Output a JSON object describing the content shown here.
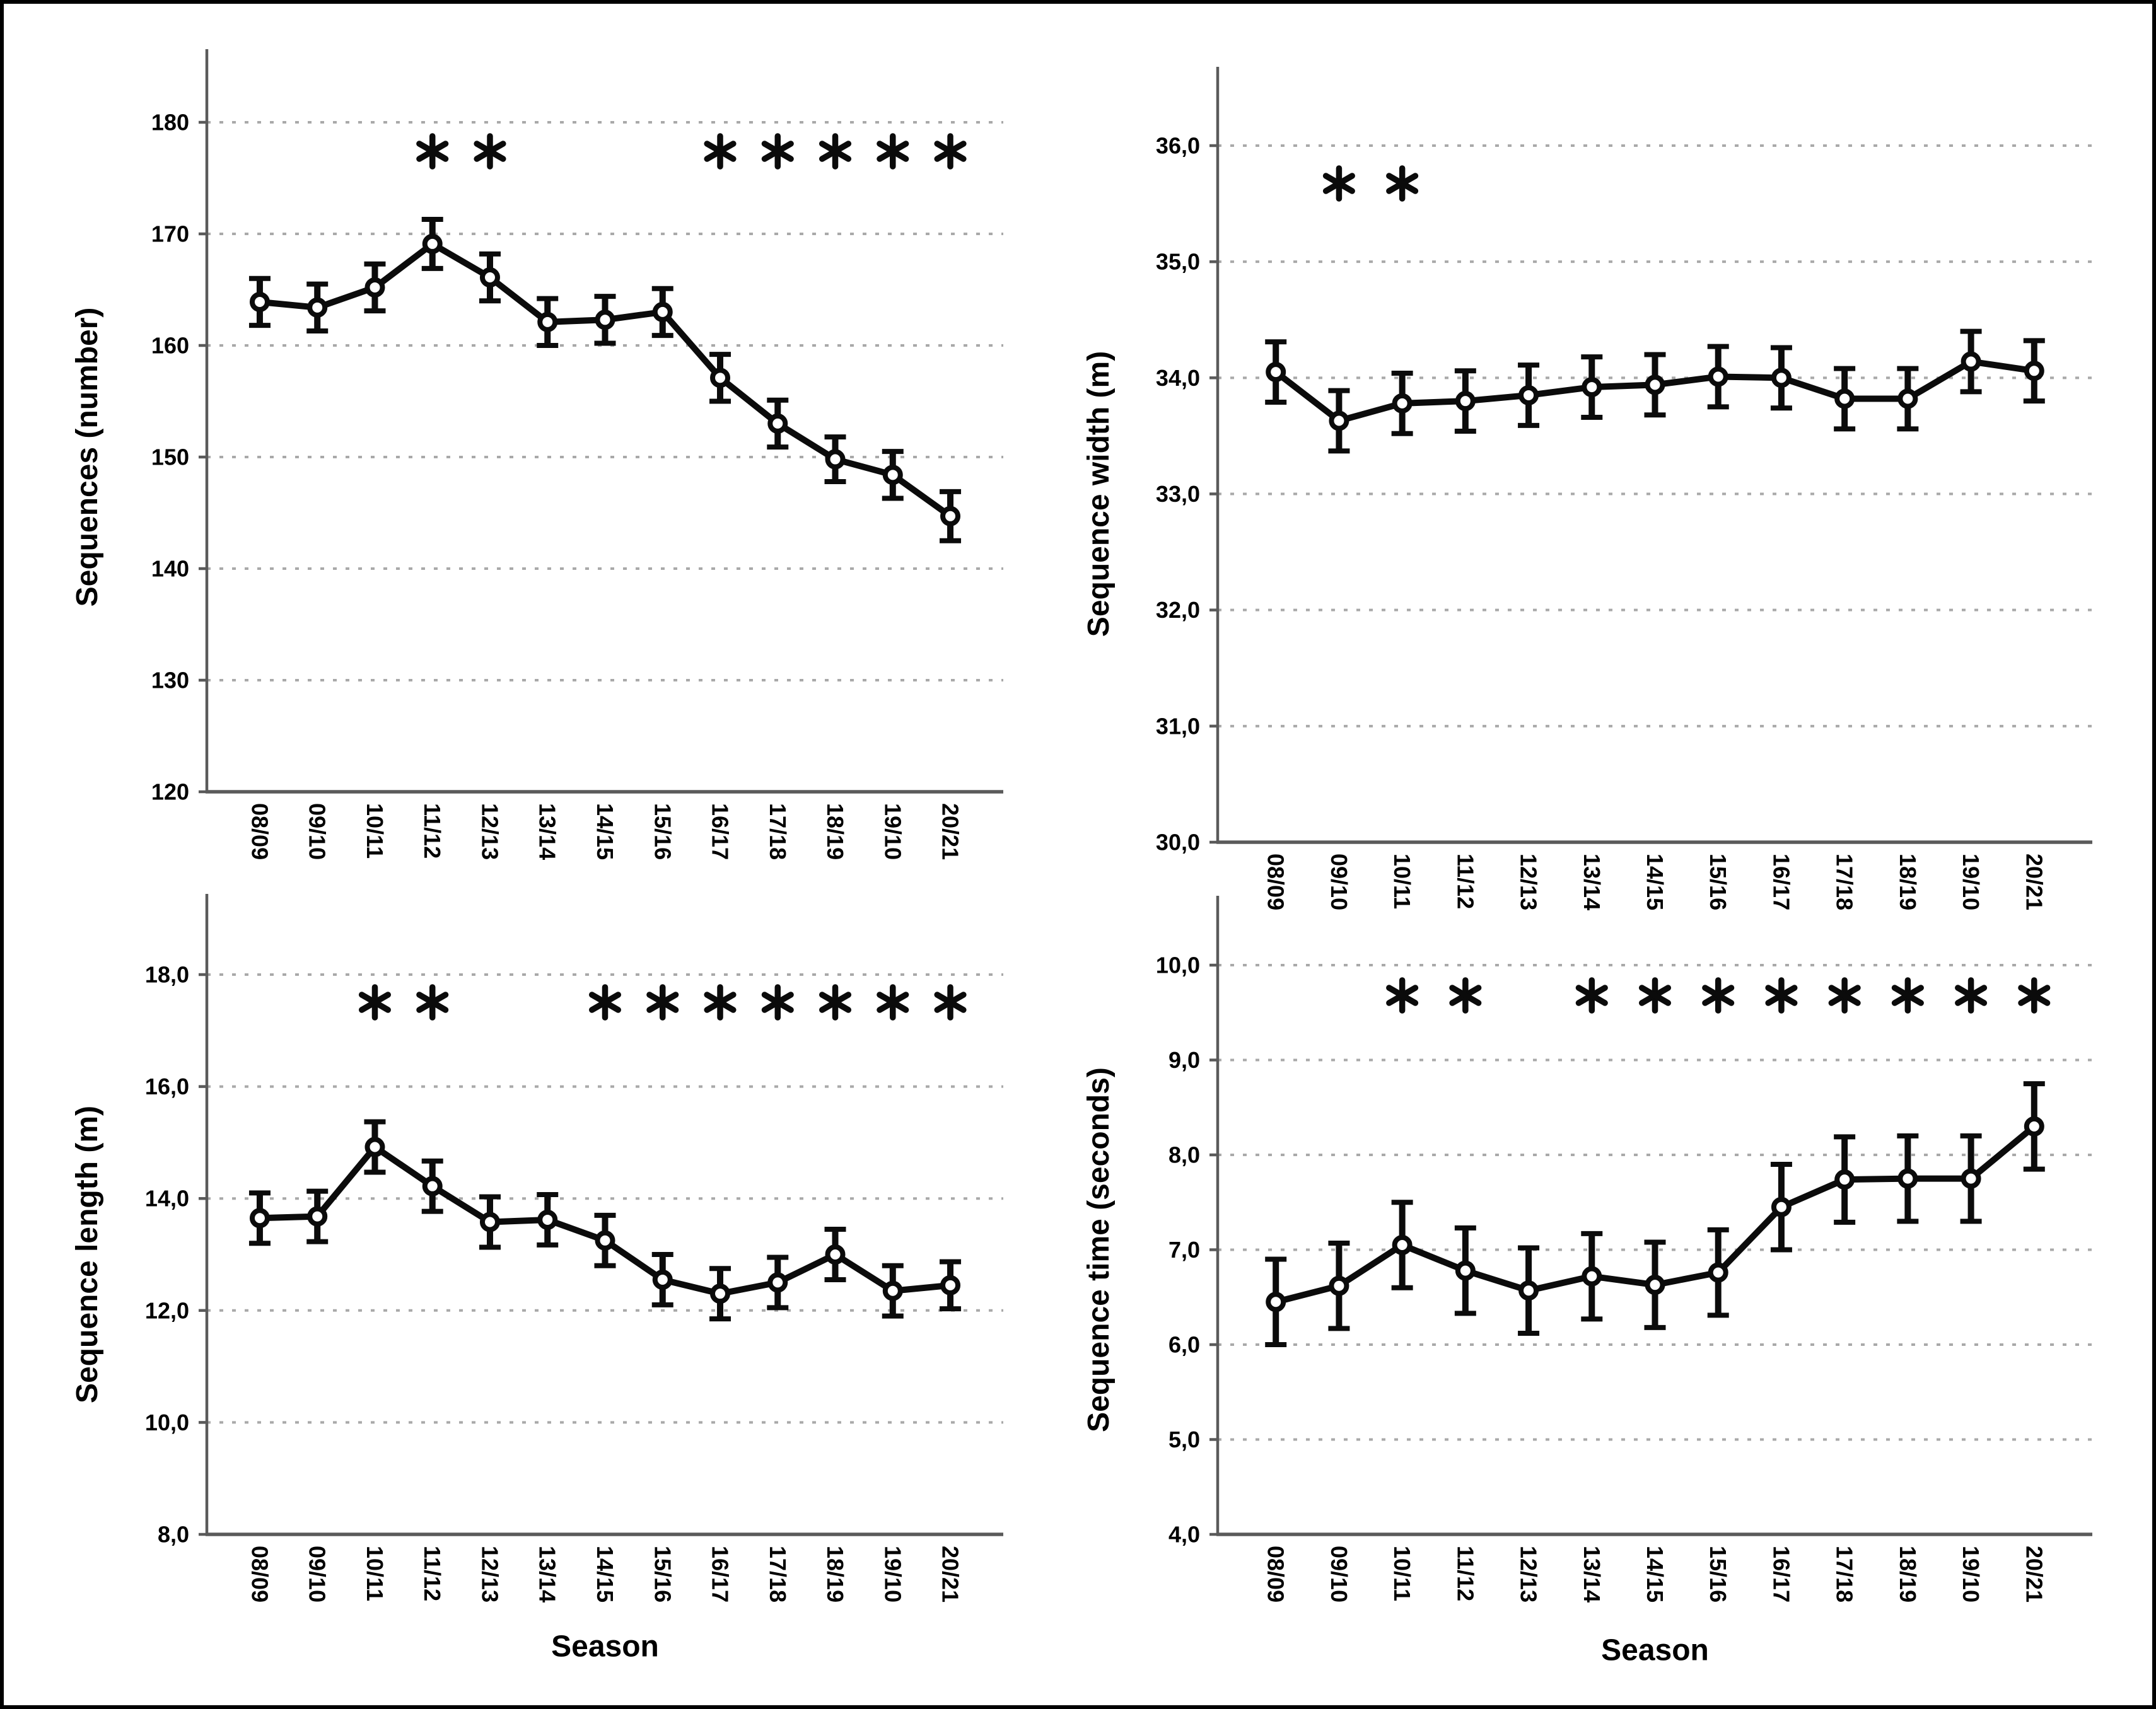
{
  "figure": {
    "background": "#ffffff",
    "frame_color": "#000000",
    "data_color": "#0b0b0b",
    "grid_color": "#a9a9a9",
    "axis_color": "#5a5a5a",
    "significance_symbol": "*",
    "decimal_separator": ","
  },
  "x_axis_title": "Season",
  "categories": [
    "08/09",
    "09/10",
    "10/11",
    "11/12",
    "12/13",
    "13/14",
    "14/15",
    "15/16",
    "16/17",
    "17/18",
    "18/19",
    "19/10",
    "20/21"
  ],
  "chart_data": [
    {
      "id": "sequences-number",
      "type": "line",
      "panel": "top-left",
      "ylabel": "Sequences (number)",
      "xlabel": "",
      "categories": [
        "08/09",
        "09/10",
        "10/11",
        "11/12",
        "12/13",
        "13/14",
        "14/15",
        "15/16",
        "16/17",
        "17/18",
        "18/19",
        "19/10",
        "20/21"
      ],
      "values": [
        163.9,
        163.4,
        165.2,
        169.1,
        166.1,
        162.1,
        162.3,
        163.0,
        157.1,
        153.0,
        149.8,
        148.4,
        144.7
      ],
      "errors": [
        2.1,
        2.1,
        2.1,
        2.2,
        2.1,
        2.1,
        2.1,
        2.1,
        2.1,
        2.1,
        2.0,
        2.1,
        2.2
      ],
      "ylim": [
        120,
        180
      ],
      "ytick_step": 10,
      "ytick_format": "integer",
      "grid": "horizontal-dotted",
      "legend": "none",
      "error_bars": true,
      "significance_marked": [
        "11/12",
        "12/13",
        "16/17",
        "17/18",
        "18/19",
        "19/10",
        "20/21"
      ]
    },
    {
      "id": "sequence-width",
      "type": "line",
      "panel": "top-right",
      "ylabel": "Sequence width (m)",
      "xlabel": "",
      "categories": [
        "08/09",
        "09/10",
        "10/11",
        "11/12",
        "12/13",
        "13/14",
        "14/15",
        "15/16",
        "16/17",
        "17/18",
        "18/19",
        "19/10",
        "20/21"
      ],
      "values": [
        34.05,
        33.63,
        33.78,
        33.8,
        33.85,
        33.92,
        33.94,
        34.01,
        34.0,
        33.82,
        33.82,
        34.14,
        34.06
      ],
      "errors": [
        0.26,
        0.26,
        0.26,
        0.26,
        0.26,
        0.26,
        0.26,
        0.26,
        0.26,
        0.26,
        0.26,
        0.26,
        0.26
      ],
      "ylim": [
        30.0,
        36.0
      ],
      "ytick_step": 1.0,
      "ytick_format": "comma1",
      "grid": "horizontal-dotted",
      "legend": "none",
      "error_bars": true,
      "significance_marked": [
        "09/10",
        "10/11"
      ]
    },
    {
      "id": "sequence-length",
      "type": "line",
      "panel": "bottom-left",
      "ylabel": "Sequence length (m)",
      "xlabel": "Season",
      "categories": [
        "08/09",
        "09/10",
        "10/11",
        "11/12",
        "12/13",
        "13/14",
        "14/15",
        "15/16",
        "16/17",
        "17/18",
        "18/19",
        "19/10",
        "20/21"
      ],
      "values": [
        13.65,
        13.68,
        14.92,
        14.22,
        13.58,
        13.62,
        13.25,
        12.55,
        12.3,
        12.5,
        13.0,
        12.35,
        12.45
      ],
      "errors": [
        0.45,
        0.45,
        0.45,
        0.45,
        0.45,
        0.45,
        0.45,
        0.45,
        0.45,
        0.45,
        0.45,
        0.45,
        0.42
      ],
      "ylim": [
        8.0,
        18.0
      ],
      "ytick_step": 2.0,
      "ytick_format": "comma1",
      "grid": "horizontal-dotted",
      "legend": "none",
      "error_bars": true,
      "significance_marked": [
        "10/11",
        "11/12",
        "14/15",
        "15/16",
        "16/17",
        "17/18",
        "18/19",
        "19/10",
        "20/21"
      ]
    },
    {
      "id": "sequence-time",
      "type": "line",
      "panel": "bottom-right",
      "ylabel": "Sequence time (seconds)",
      "xlabel": "Season",
      "categories": [
        "08/09",
        "09/10",
        "10/11",
        "11/12",
        "12/13",
        "13/14",
        "14/15",
        "15/16",
        "16/17",
        "17/18",
        "18/19",
        "19/10",
        "20/21"
      ],
      "values": [
        6.45,
        6.62,
        7.05,
        6.78,
        6.57,
        6.72,
        6.63,
        6.76,
        7.45,
        7.74,
        7.75,
        7.75,
        8.3
      ],
      "errors": [
        0.45,
        0.45,
        0.45,
        0.45,
        0.45,
        0.45,
        0.45,
        0.45,
        0.45,
        0.45,
        0.45,
        0.45,
        0.45
      ],
      "ylim": [
        4.0,
        10.0
      ],
      "ytick_step": 1.0,
      "ytick_format": "comma1",
      "grid": "horizontal-dotted",
      "legend": "none",
      "error_bars": true,
      "significance_marked": [
        "10/11",
        "11/12",
        "13/14",
        "14/15",
        "15/16",
        "16/17",
        "17/18",
        "18/19",
        "19/10",
        "20/21"
      ]
    }
  ]
}
